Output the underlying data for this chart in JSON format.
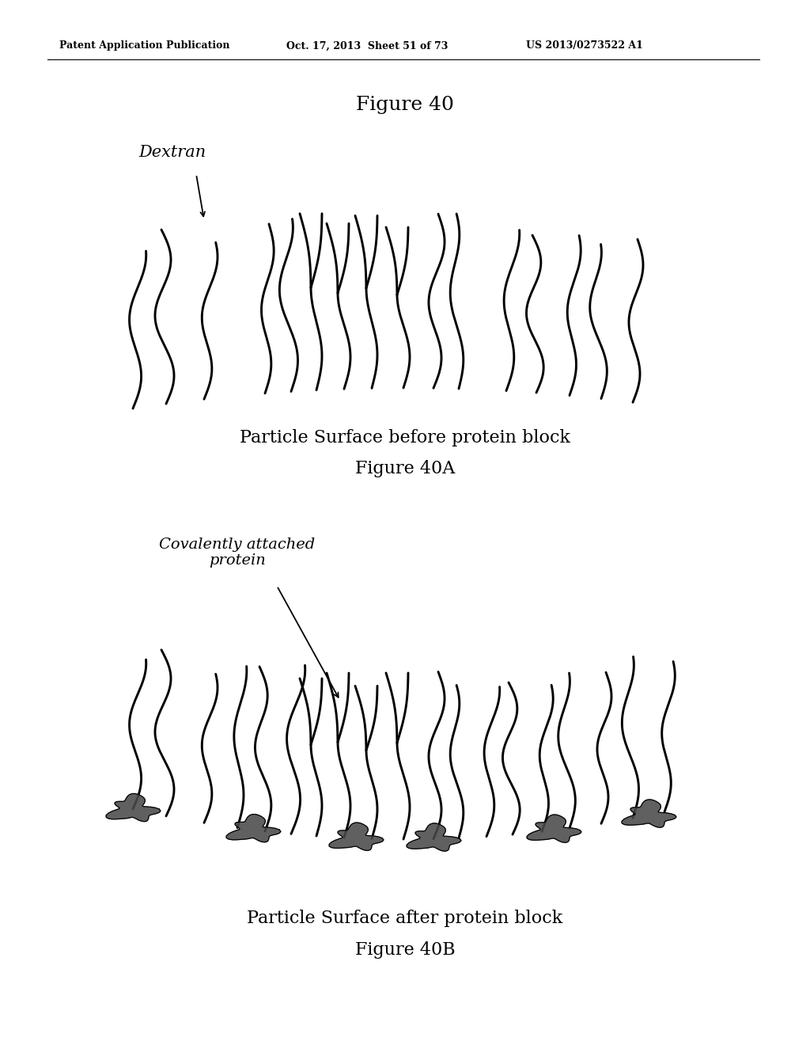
{
  "background_color": "#ffffff",
  "header_left": "Patent Application Publication",
  "header_center": "Oct. 17, 2013  Sheet 51 of 73",
  "header_right": "US 2013/0273522 A1",
  "figure_title": "Figure 40",
  "fig40a_label": "Particle Surface before protein block",
  "fig40a_sublabel": "Figure 40A",
  "fig40b_label": "Particle Surface after protein block",
  "fig40b_sublabel": "Figure 40B",
  "dextran_label": "Dextran",
  "protein_label": "Covalently attached\nprotein",
  "line_color": "#000000",
  "protein_color": "#4a4a4a",
  "header_fontsize": 9,
  "title_fontsize": 18,
  "label_fontsize": 16,
  "sublabel_fontsize": 16,
  "annotation_fontsize": 14
}
